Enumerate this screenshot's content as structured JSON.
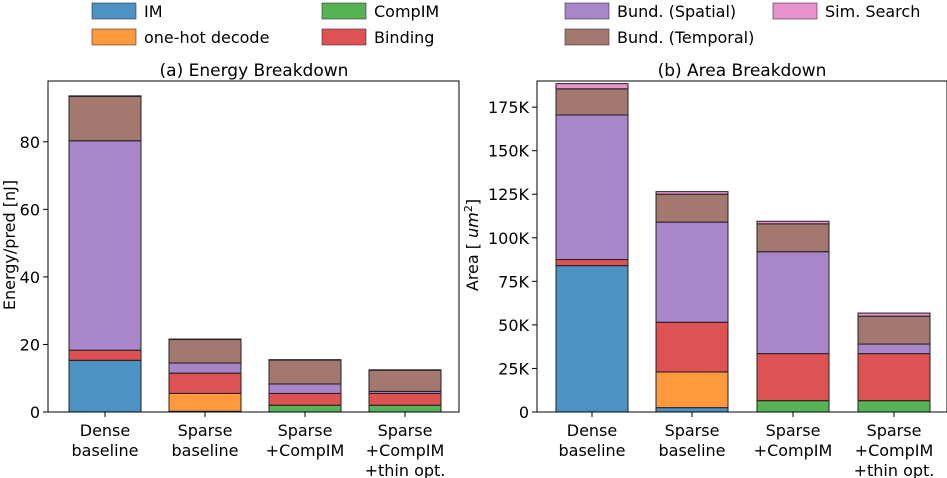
{
  "legend": [
    {
      "label": "IM",
      "color": "#1f77b4"
    },
    {
      "label": "one-hot decode",
      "color": "#ff7f0e"
    },
    {
      "label": "CompIM",
      "color": "#2ca02c"
    },
    {
      "label": "Binding",
      "color": "#d62728"
    },
    {
      "label": "Bund. (Spatial)",
      "color": "#9467bd"
    },
    {
      "label": "Bund. (Temporal)",
      "color": "#8c564b"
    },
    {
      "label": "Sim. Search",
      "color": "#e377c2"
    }
  ],
  "chart_data": [
    {
      "type": "bar",
      "stacked": true,
      "title": "(a) Energy Breakdown",
      "ylabel": "Energy/pred [nJ]",
      "ylim": [
        0,
        98
      ],
      "yticks": [
        0,
        20,
        40,
        60,
        80
      ],
      "ytick_labels": [
        "0",
        "20",
        "40",
        "60",
        "80"
      ],
      "categories": [
        [
          "Dense",
          "baseline"
        ],
        [
          "Sparse",
          "baseline"
        ],
        [
          "Sparse",
          "+CompIM"
        ],
        [
          "Sparse",
          "+CompIM",
          "+thin opt."
        ]
      ],
      "series": [
        {
          "name": "IM",
          "values": [
            15.3,
            0.2,
            0.0,
            0.0
          ]
        },
        {
          "name": "one-hot decode",
          "values": [
            0.0,
            5.3,
            0.0,
            0.0
          ]
        },
        {
          "name": "CompIM",
          "values": [
            0.0,
            0.0,
            2.0,
            2.0
          ]
        },
        {
          "name": "Binding",
          "values": [
            3.0,
            6.0,
            3.5,
            3.5
          ]
        },
        {
          "name": "Bund. (Spatial)",
          "values": [
            62.0,
            3.0,
            2.8,
            0.6
          ]
        },
        {
          "name": "Bund. (Temporal)",
          "values": [
            13.2,
            7.0,
            7.1,
            6.3
          ]
        },
        {
          "name": "Sim. Search",
          "values": [
            0.1,
            0.1,
            0.1,
            0.1
          ]
        }
      ]
    },
    {
      "type": "bar",
      "stacked": true,
      "title": "(b) Area Breakdown",
      "ylabel": "Area [um²]",
      "ylim": [
        0,
        190000
      ],
      "yticks": [
        0,
        25000,
        50000,
        75000,
        100000,
        125000,
        150000,
        175000
      ],
      "ytick_labels": [
        "0",
        "25K",
        "50K",
        "75K",
        "100K",
        "125K",
        "150K",
        "175K"
      ],
      "categories": [
        [
          "Dense",
          "baseline"
        ],
        [
          "Sparse",
          "baseline"
        ],
        [
          "Sparse",
          "+CompIM"
        ],
        [
          "Sparse",
          "+CompIM",
          "+thin opt."
        ]
      ],
      "series": [
        {
          "name": "IM",
          "values": [
            84000,
            2500,
            0,
            0
          ]
        },
        {
          "name": "one-hot decode",
          "values": [
            0,
            20500,
            0,
            0
          ]
        },
        {
          "name": "CompIM",
          "values": [
            0,
            0,
            6500,
            6500
          ]
        },
        {
          "name": "Binding",
          "values": [
            3500,
            28500,
            27000,
            27000
          ]
        },
        {
          "name": "Bund. (Spatial)",
          "values": [
            83000,
            57500,
            58500,
            5500
          ]
        },
        {
          "name": "Bund. (Temporal)",
          "values": [
            15000,
            16000,
            16000,
            16000
          ]
        },
        {
          "name": "Sim. Search",
          "values": [
            3000,
            1500,
            1500,
            1800
          ]
        }
      ]
    }
  ]
}
